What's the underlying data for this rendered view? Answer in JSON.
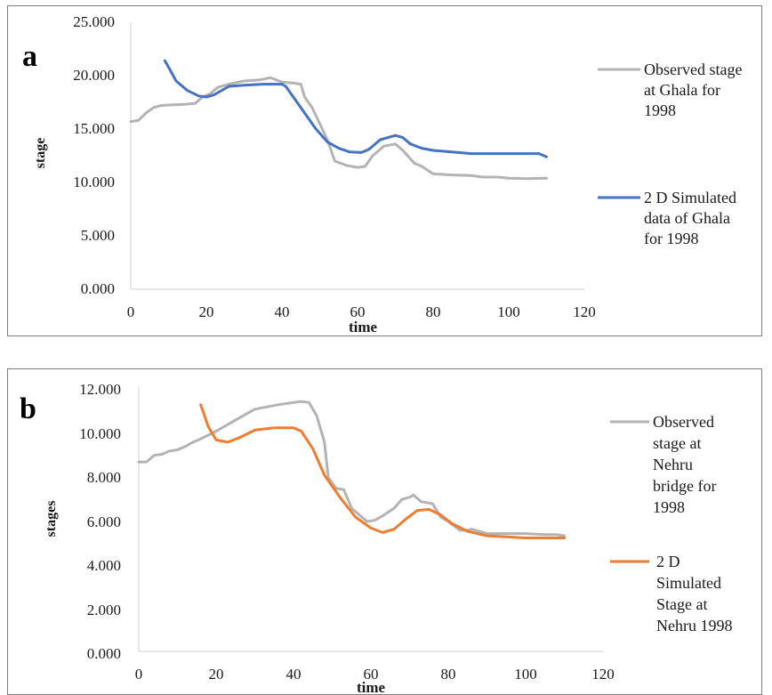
{
  "chart_data": [
    {
      "type": "line",
      "panel_label": "a",
      "xlabel": "time",
      "ylabel": "stage",
      "xlim": [
        0,
        120
      ],
      "ylim": [
        0,
        25
      ],
      "x_ticks": [
        "0",
        "20",
        "40",
        "60",
        "80",
        "100",
        "120"
      ],
      "y_ticks": [
        "0.000",
        "5.000",
        "10.000",
        "15.000",
        "20.000",
        "25.000"
      ],
      "grid": false,
      "legend_position": "right",
      "series": [
        {
          "name": "Observed stage at Ghala for 1998",
          "legend_lines": [
            "Observed stage",
            "at Ghala for",
            "1998"
          ],
          "color": "#b3b3b3",
          "points": [
            [
              0,
              15.7
            ],
            [
              2,
              15.8
            ],
            [
              4,
              16.5
            ],
            [
              6,
              17.0
            ],
            [
              8,
              17.2
            ],
            [
              10,
              17.25
            ],
            [
              14,
              17.3
            ],
            [
              17,
              17.4
            ],
            [
              19,
              18.0
            ],
            [
              21,
              18.3
            ],
            [
              23,
              18.9
            ],
            [
              26,
              19.2
            ],
            [
              30,
              19.5
            ],
            [
              34,
              19.6
            ],
            [
              37,
              19.8
            ],
            [
              40,
              19.4
            ],
            [
              43,
              19.3
            ],
            [
              45,
              19.2
            ],
            [
              46,
              18.0
            ],
            [
              48,
              17.0
            ],
            [
              50,
              15.5
            ],
            [
              52,
              14.0
            ],
            [
              54,
              12.0
            ],
            [
              57,
              11.6
            ],
            [
              60,
              11.4
            ],
            [
              62,
              11.5
            ],
            [
              64,
              12.5
            ],
            [
              67,
              13.4
            ],
            [
              70,
              13.6
            ],
            [
              72,
              13.0
            ],
            [
              75,
              11.8
            ],
            [
              77,
              11.5
            ],
            [
              80,
              10.8
            ],
            [
              85,
              10.7
            ],
            [
              90,
              10.65
            ],
            [
              93,
              10.5
            ],
            [
              97,
              10.5
            ],
            [
              100,
              10.4
            ],
            [
              105,
              10.35
            ],
            [
              110,
              10.4
            ]
          ]
        },
        {
          "name": "2 D Simulated data of Ghala for 1998",
          "legend_lines": [
            "2 D Simulated",
            "data of Ghala",
            "for 1998"
          ],
          "color": "#4472c4",
          "points": [
            [
              9,
              21.4
            ],
            [
              10,
              20.8
            ],
            [
              12,
              19.5
            ],
            [
              15,
              18.6
            ],
            [
              18,
              18.1
            ],
            [
              20,
              18.0
            ],
            [
              22,
              18.2
            ],
            [
              24,
              18.6
            ],
            [
              26,
              19.0
            ],
            [
              30,
              19.1
            ],
            [
              35,
              19.2
            ],
            [
              40,
              19.2
            ],
            [
              41,
              19.0
            ],
            [
              43,
              18.0
            ],
            [
              46,
              16.5
            ],
            [
              49,
              15.0
            ],
            [
              52,
              13.8
            ],
            [
              55,
              13.2
            ],
            [
              58,
              12.85
            ],
            [
              61,
              12.8
            ],
            [
              63,
              13.1
            ],
            [
              66,
              14.0
            ],
            [
              70,
              14.4
            ],
            [
              72,
              14.2
            ],
            [
              74,
              13.6
            ],
            [
              77,
              13.2
            ],
            [
              80,
              13.0
            ],
            [
              85,
              12.85
            ],
            [
              90,
              12.7
            ],
            [
              95,
              12.7
            ],
            [
              100,
              12.7
            ],
            [
              105,
              12.7
            ],
            [
              108,
              12.7
            ],
            [
              110,
              12.4
            ]
          ]
        }
      ]
    },
    {
      "type": "line",
      "panel_label": "b",
      "xlabel": "time",
      "ylabel": "stages",
      "xlim": [
        0,
        120
      ],
      "ylim": [
        0,
        12
      ],
      "x_ticks": [
        "0",
        "20",
        "40",
        "60",
        "80",
        "100",
        "120"
      ],
      "y_ticks": [
        "0.000",
        "2.000",
        "4.000",
        "6.000",
        "8.000",
        "10.000",
        "12.000"
      ],
      "grid": false,
      "legend_position": "right",
      "series": [
        {
          "name": "Observed stage at Nehru bridge for 1998",
          "legend_lines": [
            "Observed",
            "stage at",
            "Nehru",
            "bridge for",
            "1998"
          ],
          "color": "#b3b3b3",
          "points": [
            [
              0,
              8.6
            ],
            [
              2,
              8.6
            ],
            [
              4,
              8.9
            ],
            [
              6,
              8.95
            ],
            [
              8,
              9.1
            ],
            [
              10,
              9.15
            ],
            [
              12,
              9.3
            ],
            [
              14,
              9.5
            ],
            [
              16,
              9.65
            ],
            [
              20,
              10.0
            ],
            [
              25,
              10.5
            ],
            [
              30,
              11.0
            ],
            [
              33,
              11.1
            ],
            [
              36,
              11.2
            ],
            [
              40,
              11.3
            ],
            [
              42,
              11.35
            ],
            [
              44,
              11.3
            ],
            [
              46,
              10.7
            ],
            [
              48,
              9.5
            ],
            [
              49,
              7.9
            ],
            [
              51,
              7.4
            ],
            [
              53,
              7.35
            ],
            [
              55,
              6.5
            ],
            [
              57,
              6.2
            ],
            [
              59,
              5.9
            ],
            [
              61,
              5.95
            ],
            [
              63,
              6.15
            ],
            [
              66,
              6.5
            ],
            [
              68,
              6.9
            ],
            [
              70,
              7.0
            ],
            [
              71,
              7.1
            ],
            [
              73,
              6.8
            ],
            [
              76,
              6.7
            ],
            [
              78,
              6.1
            ],
            [
              80,
              5.9
            ],
            [
              83,
              5.5
            ],
            [
              85,
              5.5
            ],
            [
              86,
              5.55
            ],
            [
              90,
              5.35
            ],
            [
              95,
              5.35
            ],
            [
              100,
              5.35
            ],
            [
              105,
              5.3
            ],
            [
              108,
              5.3
            ],
            [
              110,
              5.25
            ]
          ]
        },
        {
          "name": "2 D Simulated Stage at Nehru 1998",
          "legend_lines": [
            "2 D",
            "Simulated",
            "Stage at",
            "Nehru 1998"
          ],
          "color": "#ed7d31",
          "points": [
            [
              16,
              11.2
            ],
            [
              18,
              10.2
            ],
            [
              20,
              9.6
            ],
            [
              23,
              9.5
            ],
            [
              26,
              9.7
            ],
            [
              30,
              10.05
            ],
            [
              35,
              10.15
            ],
            [
              40,
              10.15
            ],
            [
              42,
              10.0
            ],
            [
              45,
              9.2
            ],
            [
              48,
              8.0
            ],
            [
              52,
              7.0
            ],
            [
              56,
              6.1
            ],
            [
              60,
              5.6
            ],
            [
              63,
              5.4
            ],
            [
              66,
              5.55
            ],
            [
              69,
              6.0
            ],
            [
              72,
              6.4
            ],
            [
              75,
              6.45
            ],
            [
              78,
              6.2
            ],
            [
              81,
              5.8
            ],
            [
              85,
              5.45
            ],
            [
              90,
              5.25
            ],
            [
              95,
              5.2
            ],
            [
              100,
              5.15
            ],
            [
              105,
              5.15
            ],
            [
              110,
              5.15
            ]
          ]
        }
      ]
    }
  ]
}
